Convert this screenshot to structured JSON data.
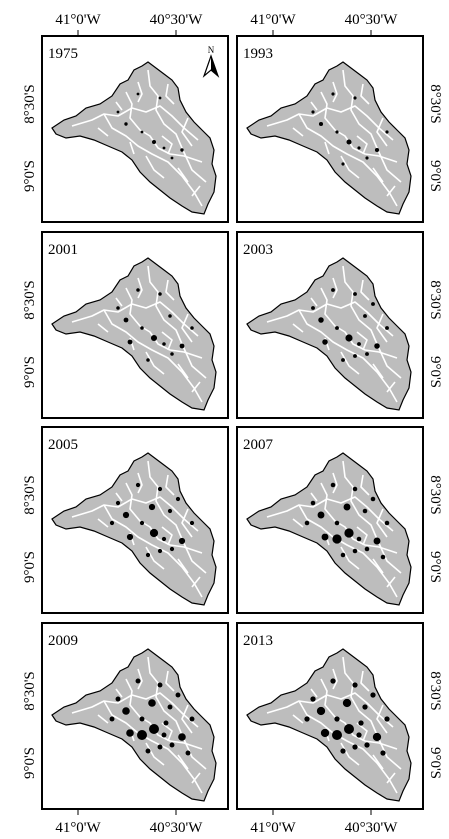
{
  "panels": [
    {
      "year": "1975"
    },
    {
      "year": "1993"
    },
    {
      "year": "2001"
    },
    {
      "year": "2003"
    },
    {
      "year": "2005"
    },
    {
      "year": "2007"
    },
    {
      "year": "2009"
    },
    {
      "year": "2013"
    }
  ],
  "longitude_labels": [
    "41°0'W",
    "40°30'W"
  ],
  "latitude_labels": [
    "8°30'S",
    "9°0'S"
  ],
  "north_label": "N"
}
